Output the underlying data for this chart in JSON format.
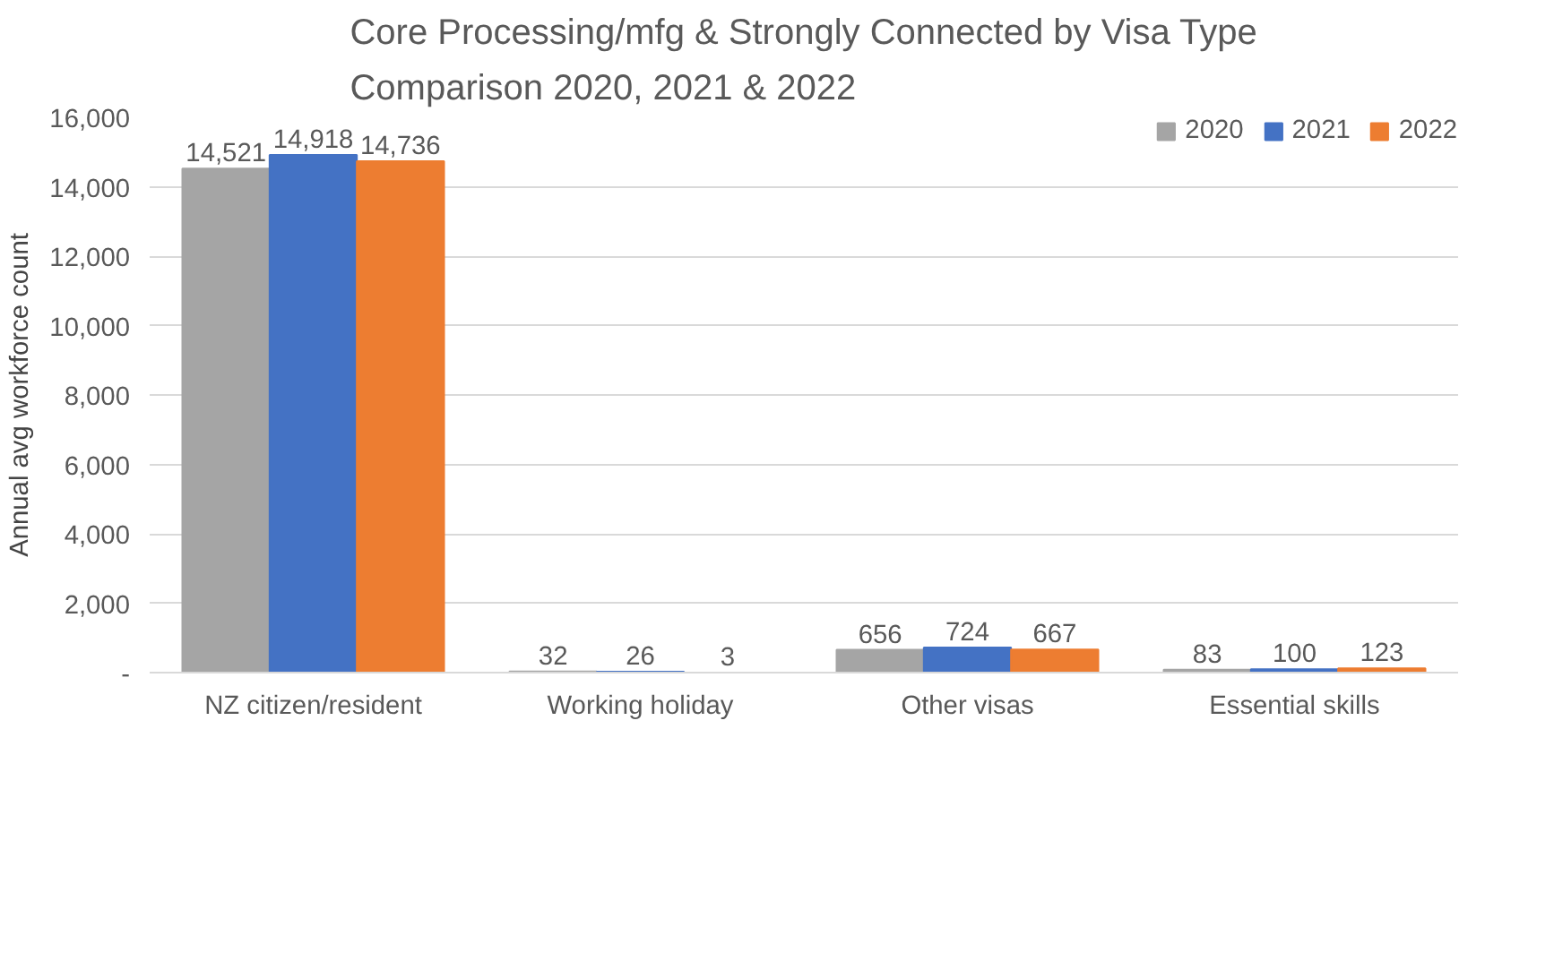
{
  "chart_data": {
    "type": "bar",
    "title": "Core Processing/mfg & Strongly Connected by Visa Type\nComparison 2020, 2021 & 2022",
    "ylabel": "Annual avg workforce count",
    "categories": [
      "NZ citizen/resident",
      "Working holiday",
      "Other visas",
      "Essential skills"
    ],
    "series": [
      {
        "name": "2020",
        "color": "#a5a5a5",
        "values": [
          14521,
          32,
          656,
          83
        ],
        "value_labels": [
          "14,521",
          "32",
          "656",
          "83"
        ]
      },
      {
        "name": "2021",
        "color": "#4472c4",
        "values": [
          14918,
          26,
          724,
          100
        ],
        "value_labels": [
          "14,918",
          "26",
          "724",
          "100"
        ]
      },
      {
        "name": "2022",
        "color": "#ed7d31",
        "values": [
          14736,
          3,
          667,
          123
        ],
        "value_labels": [
          "14,736",
          "3",
          "667",
          "123"
        ]
      }
    ],
    "ylim": [
      0,
      16000
    ],
    "yticks": [
      {
        "value": 0,
        "label": "-"
      },
      {
        "value": 2000,
        "label": "2,000"
      },
      {
        "value": 4000,
        "label": "4,000"
      },
      {
        "value": 6000,
        "label": "6,000"
      },
      {
        "value": 8000,
        "label": "8,000"
      },
      {
        "value": 10000,
        "label": "10,000"
      },
      {
        "value": 12000,
        "label": "12,000"
      },
      {
        "value": 14000,
        "label": "14,000"
      },
      {
        "value": 16000,
        "label": "16,000"
      }
    ],
    "grid": "y",
    "legend": "top right"
  }
}
